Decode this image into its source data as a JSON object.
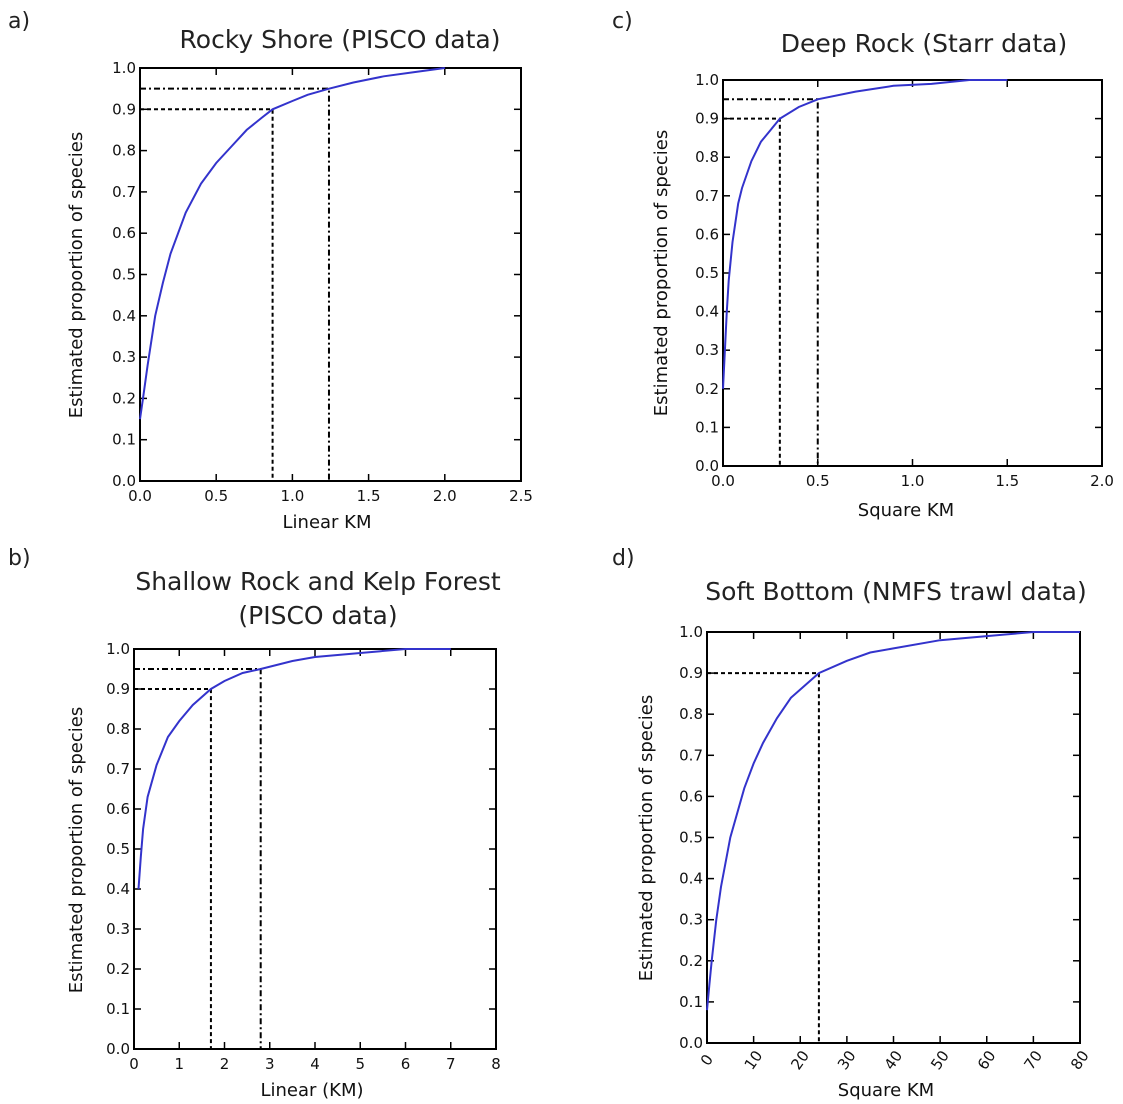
{
  "chart_data": [
    {
      "panel": "a)",
      "type": "line",
      "title": "Rocky Shore (PISCO data)",
      "xlabel": "Linear KM",
      "ylabel": "Estimated proportion of species",
      "xlim": [
        0,
        2.5
      ],
      "ylim": [
        0,
        1.0
      ],
      "xticks": [
        "0.0",
        "0.5",
        "1.0",
        "1.5",
        "2.0",
        "2.5"
      ],
      "yticks": [
        "0.0",
        "0.1",
        "0.2",
        "0.3",
        "0.4",
        "0.5",
        "0.6",
        "0.7",
        "0.8",
        "0.9",
        "1.0"
      ],
      "series": [
        {
          "color": "#3333cc",
          "x": [
            0.0,
            0.02,
            0.05,
            0.1,
            0.15,
            0.2,
            0.3,
            0.4,
            0.5,
            0.6,
            0.7,
            0.8,
            0.87,
            1.0,
            1.1,
            1.24,
            1.4,
            1.6,
            1.8,
            2.0
          ],
          "y": [
            0.15,
            0.2,
            0.28,
            0.4,
            0.48,
            0.55,
            0.65,
            0.72,
            0.77,
            0.81,
            0.85,
            0.88,
            0.9,
            0.92,
            0.935,
            0.95,
            0.965,
            0.98,
            0.99,
            1.0
          ]
        }
      ],
      "reference_lines": [
        {
          "x": 0.87,
          "y": 0.9,
          "style": "dashed"
        },
        {
          "x": 1.24,
          "y": 0.95,
          "style": "dashdot"
        }
      ]
    },
    {
      "panel": "b)",
      "type": "line",
      "title": "Shallow Rock and Kelp Forest",
      "title_line2": "(PISCO data)",
      "xlabel": "Linear  (KM)",
      "ylabel": "Estimated proportion of species",
      "xlim": [
        0,
        8
      ],
      "ylim": [
        0,
        1.0
      ],
      "xticks": [
        "0",
        "1",
        "2",
        "3",
        "4",
        "5",
        "6",
        "7",
        "8"
      ],
      "yticks": [
        "0.0",
        "0.1",
        "0.2",
        "0.3",
        "0.4",
        "0.5",
        "0.6",
        "0.7",
        "0.8",
        "0.9",
        "1.0"
      ],
      "series": [
        {
          "color": "#3333cc",
          "x": [
            0.1,
            0.15,
            0.2,
            0.3,
            0.5,
            0.75,
            1.0,
            1.3,
            1.7,
            2.0,
            2.4,
            2.8,
            3.5,
            4.0,
            5.0,
            6.0,
            7.0
          ],
          "y": [
            0.4,
            0.48,
            0.55,
            0.63,
            0.71,
            0.78,
            0.82,
            0.86,
            0.9,
            0.92,
            0.94,
            0.95,
            0.97,
            0.98,
            0.99,
            1.0,
            1.0
          ]
        }
      ],
      "reference_lines": [
        {
          "x": 1.7,
          "y": 0.9,
          "style": "dashed"
        },
        {
          "x": 2.8,
          "y": 0.95,
          "style": "dashdot"
        }
      ]
    },
    {
      "panel": "c)",
      "type": "line",
      "title": "Deep Rock (Starr data)",
      "xlabel": "Square KM",
      "ylabel": "Estimated proportion of species",
      "xlim": [
        0,
        2.0
      ],
      "ylim": [
        0,
        1.0
      ],
      "xticks": [
        "0.0",
        "0.5",
        "1.0",
        "1.5",
        "2.0"
      ],
      "yticks": [
        "0.0",
        "0.1",
        "0.2",
        "0.3",
        "0.4",
        "0.5",
        "0.6",
        "0.7",
        "0.8",
        "0.9",
        "1.0"
      ],
      "series": [
        {
          "color": "#3333cc",
          "x": [
            0.0,
            0.01,
            0.02,
            0.03,
            0.05,
            0.08,
            0.1,
            0.15,
            0.2,
            0.25,
            0.3,
            0.4,
            0.5,
            0.7,
            0.9,
            1.1,
            1.3,
            1.5
          ],
          "y": [
            0.2,
            0.3,
            0.4,
            0.48,
            0.58,
            0.68,
            0.72,
            0.79,
            0.84,
            0.87,
            0.9,
            0.93,
            0.95,
            0.97,
            0.985,
            0.99,
            1.0,
            1.0
          ]
        }
      ],
      "reference_lines": [
        {
          "x": 0.3,
          "y": 0.9,
          "style": "dashed"
        },
        {
          "x": 0.5,
          "y": 0.95,
          "style": "dashdot"
        }
      ]
    },
    {
      "panel": "d)",
      "type": "line",
      "title": "Soft Bottom (NMFS trawl data)",
      "xlabel": "Square KM",
      "ylabel": "Estimated proportion of species",
      "xlim": [
        0,
        80
      ],
      "ylim": [
        0,
        1.0
      ],
      "xticks": [
        "0",
        "10",
        "20",
        "30",
        "40",
        "50",
        "60",
        "70",
        "80"
      ],
      "yticks": [
        "0.0",
        "0.1",
        "0.2",
        "0.3",
        "0.4",
        "0.5",
        "0.6",
        "0.7",
        "0.8",
        "0.9",
        "1.0"
      ],
      "series": [
        {
          "color": "#3333cc",
          "x": [
            0.0,
            0.5,
            1.0,
            2.0,
            3.0,
            5.0,
            8.0,
            10.0,
            12.0,
            15.0,
            18.0,
            20.0,
            24.0,
            30.0,
            35.0,
            40.0,
            50.0,
            60.0,
            70.0,
            75.0,
            80.0
          ],
          "y": [
            0.08,
            0.14,
            0.2,
            0.3,
            0.38,
            0.5,
            0.62,
            0.68,
            0.73,
            0.79,
            0.84,
            0.86,
            0.9,
            0.93,
            0.95,
            0.96,
            0.98,
            0.99,
            1.0,
            1.0,
            1.0
          ]
        }
      ],
      "reference_lines": [
        {
          "x": 24.0,
          "y": 0.9,
          "style": "dashed"
        }
      ]
    }
  ]
}
